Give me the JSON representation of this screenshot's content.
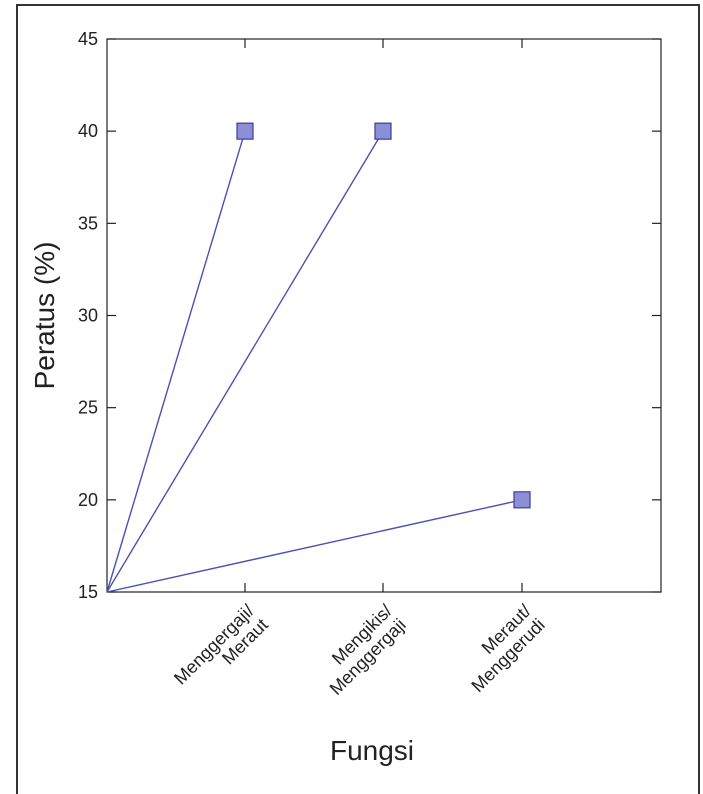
{
  "chart_data": {
    "type": "line",
    "title": "",
    "xlabel": "Fungsi",
    "ylabel": "Peratus (%)",
    "ylim": [
      15,
      45
    ],
    "yticks": [
      15,
      20,
      25,
      30,
      35,
      40,
      45
    ],
    "categories": [
      [
        "Menggergaji/",
        "Meraut"
      ],
      [
        "Mengikis/",
        "Menggergaji"
      ],
      [
        "Meraut/",
        "Menggerudi"
      ]
    ],
    "x_origin_value": 15,
    "values": [
      40,
      40,
      20
    ],
    "grid": false,
    "colors": {
      "line": "#4a52b0",
      "marker_fill": "#8c8fd6",
      "marker_stroke": "#3a3f9a"
    }
  }
}
